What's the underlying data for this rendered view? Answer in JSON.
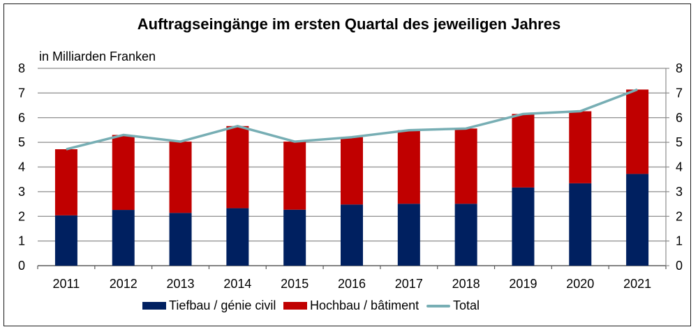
{
  "chart_data": {
    "type": "bar",
    "stacked": true,
    "title": "Auftragseingänge im ersten Quartal des jeweiligen Jahres",
    "unit_label": "in Milliarden Franken",
    "xlabel": "",
    "ylabel": "",
    "ylim": [
      0,
      8
    ],
    "yticks": [
      "0",
      "1",
      "2",
      "3",
      "4",
      "5",
      "6",
      "7",
      "8"
    ],
    "secondary_yticks": [
      "0",
      "1",
      "2",
      "3",
      "4",
      "5",
      "6",
      "7",
      "8"
    ],
    "grid": true,
    "legend_position": "bottom",
    "categories": [
      "2011",
      "2012",
      "2013",
      "2014",
      "2015",
      "2016",
      "2017",
      "2018",
      "2019",
      "2020",
      "2021"
    ],
    "series": [
      {
        "name": "Tiefbau / génie civil",
        "kind": "bar",
        "color": "#002060",
        "values": [
          2.04,
          2.26,
          2.14,
          2.33,
          2.27,
          2.48,
          2.51,
          2.51,
          3.17,
          3.34,
          3.72
        ]
      },
      {
        "name": "Hochbau / bâtiment",
        "kind": "bar",
        "color": "#C00000",
        "values": [
          2.68,
          3.04,
          2.89,
          3.33,
          2.76,
          2.73,
          2.98,
          3.05,
          2.98,
          2.92,
          3.42
        ]
      },
      {
        "name": "Total",
        "kind": "line",
        "color": "#77AEB4",
        "values": [
          4.72,
          5.3,
          5.03,
          5.66,
          5.03,
          5.21,
          5.49,
          5.56,
          6.15,
          6.26,
          7.14
        ]
      }
    ]
  }
}
